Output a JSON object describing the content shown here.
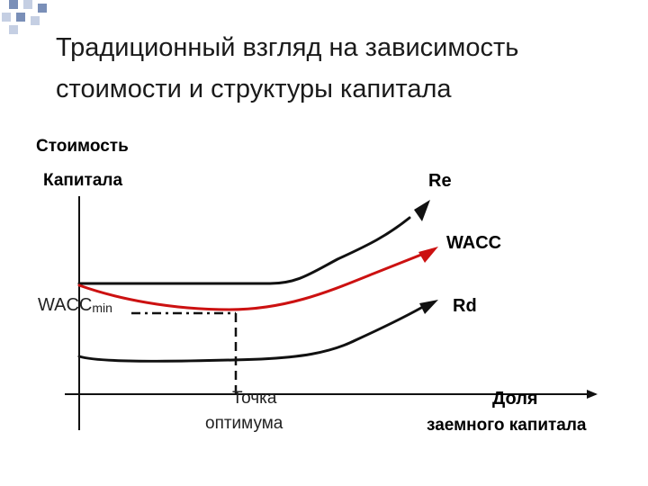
{
  "slide": {
    "title": "Традиционный взгляд на зависимость стоимости и структуры капитала"
  },
  "colors": {
    "deco_dark": "#7a8fb8",
    "deco_light": "#c5cfe3",
    "curve_black": "#111111",
    "curve_red": "#cc1111"
  },
  "chart_data": {
    "type": "line",
    "ylabel_line1": "Стоимость",
    "ylabel_line2": "Капитала",
    "xlabel_line1": "Доля",
    "xlabel_line2": "заемного капитала",
    "min_label_main": "WACC",
    "min_label_sub": "min",
    "optimum_line1": "Точка",
    "optimum_line2": "оптимума",
    "series": [
      {
        "name": "Re",
        "color": "#111111"
      },
      {
        "name": "WACC",
        "color": "#cc1111"
      },
      {
        "name": "Rd",
        "color": "#111111"
      }
    ]
  }
}
